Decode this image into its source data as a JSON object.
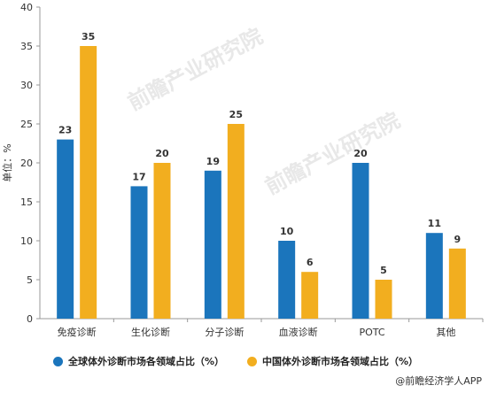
{
  "chart_data": {
    "type": "bar",
    "categories": [
      "免疫诊断",
      "生化诊断",
      "分子诊断",
      "血液诊断",
      "POTC",
      "其他"
    ],
    "series": [
      {
        "name": "全球体外诊断市场各领域占比（%）",
        "color": "#1b75bc",
        "values": [
          23,
          17,
          19,
          10,
          20,
          11
        ]
      },
      {
        "name": "中国体外诊断市场各领域占比（%）",
        "color": "#f2ae1f",
        "values": [
          35,
          20,
          25,
          6,
          5,
          9
        ]
      }
    ],
    "ylabel": "单位：%",
    "ylim": [
      0,
      40
    ],
    "yticks": [
      0,
      5,
      10,
      15,
      20,
      25,
      30,
      35,
      40
    ],
    "grid": false,
    "legend": "bottom"
  },
  "watermark": "前瞻产业研究院",
  "credit": "@前瞻经济学人APP"
}
